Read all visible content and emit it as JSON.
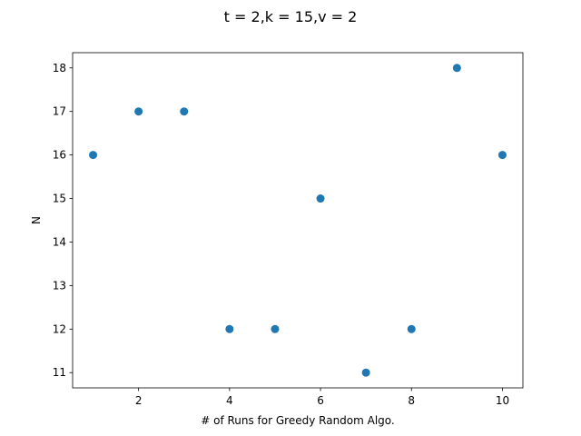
{
  "chart_data": {
    "type": "scatter",
    "title": "t = 2,k = 15,v = 2",
    "xlabel": "# of Runs for Greedy Random Algo.",
    "ylabel": "N",
    "x": [
      1,
      2,
      3,
      4,
      5,
      6,
      7,
      8,
      9,
      10
    ],
    "y": [
      16,
      17,
      17,
      12,
      12,
      15,
      11,
      12,
      18,
      16
    ],
    "xlim": [
      0.55,
      10.45
    ],
    "ylim": [
      10.65,
      18.35
    ],
    "xticks": [
      2,
      4,
      6,
      8,
      10
    ],
    "yticks": [
      11,
      12,
      13,
      14,
      15,
      16,
      17,
      18
    ],
    "grid": false,
    "marker_color": "#1f77b4"
  }
}
